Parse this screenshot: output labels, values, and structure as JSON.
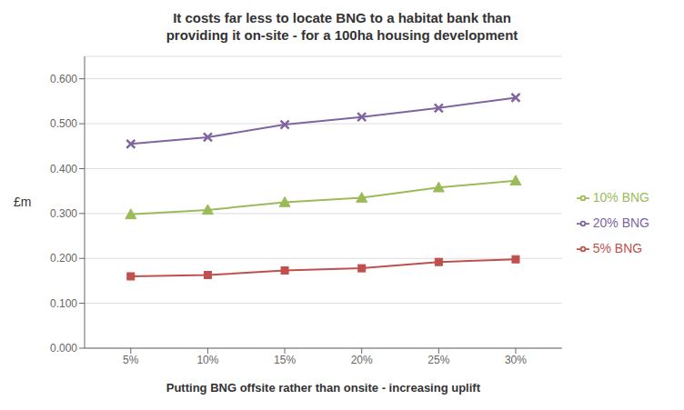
{
  "chart_data": {
    "type": "line",
    "title": "It costs far less to locate BNG to a habitat bank than\nproviding it on-site - for a 100ha housing development",
    "xlabel": "Putting BNG offsite rather than onsite - increasing uplift",
    "ylabel": "£m",
    "x": [
      5,
      10,
      15,
      20,
      25,
      30
    ],
    "series": [
      {
        "name": "5% BNG",
        "color": "#C0504D",
        "marker": "square",
        "values": [
          0.16,
          0.163,
          0.173,
          0.178,
          0.192,
          0.198
        ]
      },
      {
        "name": "10% BNG",
        "color": "#9BBB59",
        "marker": "triangle",
        "values": [
          0.298,
          0.308,
          0.325,
          0.335,
          0.358,
          0.373
        ]
      },
      {
        "name": "20% BNG",
        "color": "#8064A2",
        "marker": "x",
        "values": [
          0.455,
          0.47,
          0.498,
          0.515,
          0.535,
          0.558
        ]
      }
    ],
    "xlim": [
      2,
      33
    ],
    "xticks": [
      {
        "value": 5,
        "label": "5%"
      },
      {
        "value": 10,
        "label": "10%"
      },
      {
        "value": 15,
        "label": "15%"
      },
      {
        "value": 20,
        "label": "20%"
      },
      {
        "value": 25,
        "label": "25%"
      },
      {
        "value": 30,
        "label": "30%"
      }
    ],
    "ylim": [
      0.0,
      0.65
    ],
    "yticks": [
      {
        "value": 0.0,
        "label": "0.000"
      },
      {
        "value": 0.1,
        "label": "0.100"
      },
      {
        "value": 0.2,
        "label": "0.200"
      },
      {
        "value": 0.3,
        "label": "0.300"
      },
      {
        "value": 0.4,
        "label": "0.400"
      },
      {
        "value": 0.5,
        "label": "0.500"
      },
      {
        "value": 0.6,
        "label": "0.600"
      }
    ],
    "grid": "y",
    "legend": "right"
  }
}
